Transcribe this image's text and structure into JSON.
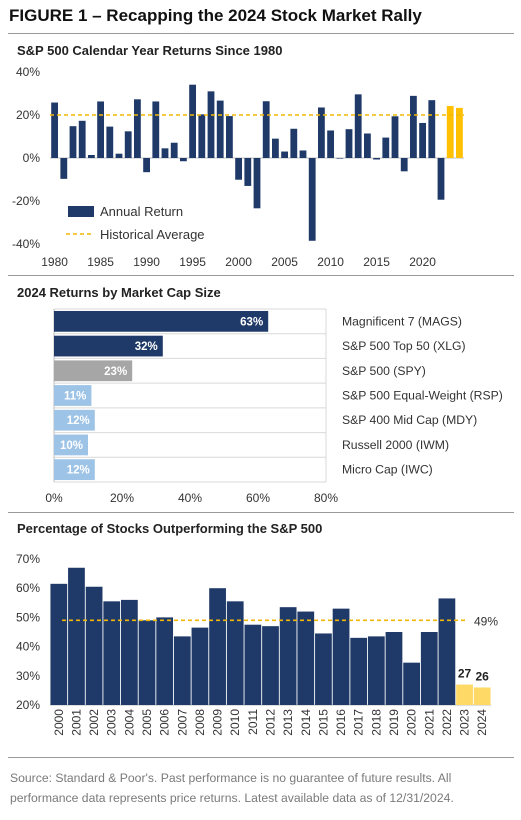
{
  "figure_title": "FIGURE 1 – Recapping the 2024 Stock Market Rally",
  "footnote": "Source: Standard & Poor's. Past performance is no guarantee of future results. All performance data represents price returns. Latest available data as of 12/31/2024.",
  "colors": {
    "navy": "#1f3a68",
    "gold": "#ffc000",
    "gold_light": "#ffd966",
    "gray": "#a6a6a6",
    "light_blue": "#9dc3e6",
    "avg_line": "#f2b705"
  },
  "chart_data": [
    {
      "type": "bar",
      "title": "S&P 500 Calendar Year Returns Since 1980",
      "x": [
        1980,
        1981,
        1982,
        1983,
        1984,
        1985,
        1986,
        1987,
        1988,
        1989,
        1990,
        1991,
        1992,
        1993,
        1994,
        1995,
        1996,
        1997,
        1998,
        1999,
        2000,
        2001,
        2002,
        2003,
        2004,
        2005,
        2006,
        2007,
        2008,
        2009,
        2010,
        2011,
        2012,
        2013,
        2014,
        2015,
        2016,
        2017,
        2018,
        2019,
        2020,
        2021,
        2022,
        2023,
        2024
      ],
      "series": [
        {
          "name": "Annual Return",
          "values": [
            25.8,
            -9.7,
            14.8,
            17.3,
            1.4,
            26.3,
            14.6,
            2.0,
            12.4,
            27.3,
            -6.6,
            26.3,
            4.5,
            7.1,
            -1.5,
            34.1,
            20.3,
            31.0,
            26.7,
            19.5,
            -10.1,
            -13.0,
            -23.4,
            26.4,
            9.0,
            3.0,
            13.6,
            3.5,
            -38.5,
            23.5,
            12.8,
            0.0,
            13.4,
            29.6,
            11.4,
            -0.7,
            9.5,
            19.4,
            -6.2,
            28.9,
            16.3,
            26.9,
            -19.4,
            24.2,
            23.3
          ]
        }
      ],
      "highlight_years": [
        2023,
        2024
      ],
      "reference_line": {
        "name": "Historical Average",
        "value": 20
      },
      "ylim": [
        -40,
        40
      ],
      "yticks": [
        "-40%",
        "-20%",
        "0%",
        "20%",
        "40%"
      ],
      "xticks": [
        "1980",
        "1985",
        "1990",
        "1995",
        "2000",
        "2005",
        "2010",
        "2015",
        "2020"
      ],
      "legend": {
        "placement": "bottom-left",
        "entries": [
          "Annual Return",
          "Historical Average"
        ]
      }
    },
    {
      "type": "bar",
      "orientation": "horizontal",
      "title": "2024 Returns by Market Cap Size",
      "categories": [
        "Magnificent 7 (MAGS)",
        "S&P 500 Top 50 (XLG)",
        "S&P 500 (SPY)",
        "S&P 500 Equal-Weight (RSP)",
        "S&P 400 Mid Cap (MDY)",
        "Russell 2000 (IWM)",
        "Micro Cap (IWC)"
      ],
      "values": [
        63,
        32,
        23,
        11,
        12,
        10,
        12
      ],
      "labels": [
        "63%",
        "32%",
        "23%",
        "11%",
        "12%",
        "10%",
        "12%"
      ],
      "bar_colors": [
        "#1f3a68",
        "#1f3a68",
        "#a6a6a6",
        "#9dc3e6",
        "#9dc3e6",
        "#9dc3e6",
        "#9dc3e6"
      ],
      "xlim": [
        0,
        80
      ],
      "xticks": [
        "0%",
        "20%",
        "40%",
        "60%",
        "80%"
      ]
    },
    {
      "type": "bar",
      "title": "Percentage of Stocks Outperforming the S&P 500",
      "categories": [
        "2000",
        "2001",
        "2002",
        "2003",
        "2004",
        "2005",
        "2006",
        "2007",
        "2008",
        "2009",
        "2010",
        "2011",
        "2012",
        "2013",
        "2014",
        "2015",
        "2016",
        "2017",
        "2018",
        "2019",
        "2020",
        "2021",
        "2022",
        "2023",
        "2024"
      ],
      "values": [
        61.5,
        67,
        60.5,
        55.5,
        56,
        49,
        50,
        43.5,
        46.5,
        60,
        55.5,
        47.5,
        47,
        53.5,
        52,
        44.5,
        53,
        43,
        43.5,
        45,
        34.5,
        45,
        56.5,
        27,
        26
      ],
      "highlight_categories": [
        "2023",
        "2024"
      ],
      "data_labels": {
        "2023": "27",
        "2024": "26"
      },
      "reference_line": {
        "value": 49,
        "label": "49%"
      },
      "ylim": [
        20,
        70
      ],
      "yticks": [
        "20%",
        "30%",
        "40%",
        "50%",
        "60%",
        "70%"
      ]
    }
  ]
}
